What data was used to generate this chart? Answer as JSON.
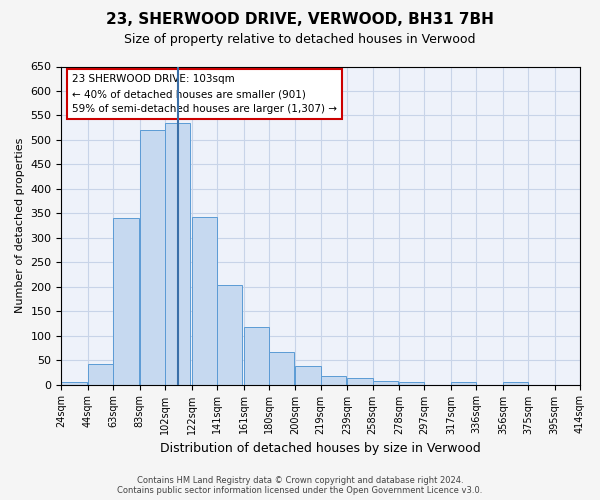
{
  "title1": "23, SHERWOOD DRIVE, VERWOOD, BH31 7BH",
  "title2": "Size of property relative to detached houses in Verwood",
  "xlabel": "Distribution of detached houses by size in Verwood",
  "ylabel": "Number of detached properties",
  "bar_values": [
    5,
    42,
    340,
    520,
    535,
    342,
    203,
    118,
    67,
    37,
    18,
    13,
    8,
    5,
    0,
    5,
    0,
    5
  ],
  "bin_lefts": [
    24,
    44,
    63,
    83,
    102,
    122,
    141,
    161,
    180,
    200,
    219,
    239,
    258,
    278,
    297,
    317,
    336,
    356
  ],
  "bin_width": 19,
  "tick_positions": [
    24,
    44,
    63,
    83,
    102,
    122,
    141,
    161,
    180,
    200,
    219,
    239,
    258,
    278,
    297,
    317,
    336,
    356,
    375,
    395,
    414
  ],
  "tick_labels": [
    "24sqm",
    "44sqm",
    "63sqm",
    "83sqm",
    "102sqm",
    "122sqm",
    "141sqm",
    "161sqm",
    "180sqm",
    "200sqm",
    "219sqm",
    "239sqm",
    "258sqm",
    "278sqm",
    "297sqm",
    "317sqm",
    "336sqm",
    "356sqm",
    "375sqm",
    "395sqm",
    "414sqm"
  ],
  "bar_color": "#c6d9f0",
  "bar_edge_color": "#5b9bd5",
  "vline_x": 111.5,
  "vline_color": "#3a6fa8",
  "ylim": [
    0,
    650
  ],
  "yticks": [
    0,
    50,
    100,
    150,
    200,
    250,
    300,
    350,
    400,
    450,
    500,
    550,
    600,
    650
  ],
  "grid_color": "#c8d4e8",
  "bg_color": "#eef2fa",
  "annotation_text": "23 SHERWOOD DRIVE: 103sqm\n← 40% of detached houses are smaller (901)\n59% of semi-detached houses are larger (1,307) →",
  "annotation_box_color": "#ffffff",
  "annotation_box_edge_color": "#cc0000",
  "footer1": "Contains HM Land Registry data © Crown copyright and database right 2024.",
  "footer2": "Contains public sector information licensed under the Open Government Licence v3.0.",
  "fig_bg": "#f5f5f5"
}
